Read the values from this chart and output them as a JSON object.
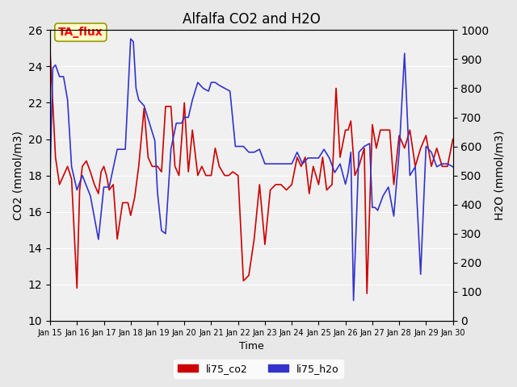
{
  "title": "Alfalfa CO2 and H2O",
  "xlabel": "Time",
  "ylabel_left": "CO2 (mmol/m3)",
  "ylabel_right": "H2O (mmol/m3)",
  "ylim_left": [
    10,
    26
  ],
  "ylim_right": [
    0,
    1000
  ],
  "yticks_left": [
    10,
    12,
    14,
    16,
    18,
    20,
    22,
    24,
    26
  ],
  "yticks_right": [
    0,
    100,
    200,
    300,
    400,
    500,
    600,
    700,
    800,
    900,
    1000
  ],
  "color_co2": "#cc0000",
  "color_h2o": "#3333cc",
  "legend_label_co2": "li75_co2",
  "legend_label_h2o": "li75_h2o",
  "annotation_text": "TA_flux",
  "annotation_bbox_facecolor": "#ffffcc",
  "annotation_bbox_edgecolor": "#999900",
  "bg_color": "#e8e8e8",
  "plot_bg_color": "#f0f0f0",
  "x_start": 15,
  "x_end": 30,
  "x_ticks": [
    15,
    16,
    17,
    18,
    19,
    20,
    21,
    22,
    23,
    24,
    25,
    26,
    27,
    28,
    29,
    30
  ],
  "x_tick_labels": [
    "Jan 15",
    "Jan 16",
    "Jan 17",
    "Jan 18",
    "Jan 19",
    "Jan 20",
    "Jan 21",
    "Jan 22",
    "Jan 23",
    "Jan 24",
    "Jan 25",
    "Jan 26",
    "Jan 27",
    "Jan 28",
    "Jan 29",
    "Jan 30"
  ],
  "co2_x": [
    15.0,
    15.1,
    15.2,
    15.35,
    15.5,
    15.65,
    15.8,
    16.0,
    16.1,
    16.2,
    16.35,
    16.5,
    16.65,
    16.8,
    16.9,
    17.0,
    17.1,
    17.2,
    17.35,
    17.5,
    17.7,
    17.9,
    18.0,
    18.15,
    18.3,
    18.5,
    18.65,
    18.8,
    19.0,
    19.15,
    19.3,
    19.5,
    19.65,
    19.8,
    20.0,
    20.15,
    20.3,
    20.5,
    20.65,
    20.8,
    21.0,
    21.15,
    21.3,
    21.5,
    21.65,
    21.8,
    22.0,
    22.2,
    22.4,
    22.6,
    22.8,
    23.0,
    23.2,
    23.4,
    23.6,
    23.8,
    24.0,
    24.2,
    24.35,
    24.5,
    24.65,
    24.8,
    25.0,
    25.15,
    25.3,
    25.5,
    25.65,
    25.8,
    26.0,
    26.1,
    26.2,
    26.35,
    26.5,
    26.6,
    26.7,
    26.8,
    27.0,
    27.15,
    27.3,
    27.5,
    27.65,
    27.8,
    28.0,
    28.2,
    28.4,
    28.6,
    28.8,
    29.0,
    29.2,
    29.4,
    29.6,
    29.8,
    30.0
  ],
  "co2_y": [
    24.8,
    22.0,
    19.0,
    17.5,
    18.0,
    18.5,
    17.8,
    11.8,
    17.2,
    18.5,
    18.8,
    18.2,
    17.5,
    17.0,
    18.2,
    18.5,
    18.0,
    17.2,
    17.5,
    14.5,
    16.5,
    16.5,
    15.8,
    16.8,
    18.5,
    21.7,
    19.0,
    18.5,
    18.5,
    18.2,
    21.8,
    21.8,
    18.5,
    18.0,
    22.0,
    18.2,
    20.5,
    18.0,
    18.5,
    18.0,
    18.0,
    19.5,
    18.5,
    18.0,
    18.0,
    18.2,
    18.0,
    12.2,
    12.5,
    14.5,
    17.5,
    14.2,
    17.2,
    17.5,
    17.5,
    17.2,
    17.5,
    19.0,
    18.5,
    19.0,
    17.0,
    18.5,
    17.5,
    19.0,
    17.2,
    17.5,
    22.8,
    19.0,
    20.5,
    20.5,
    21.0,
    18.0,
    18.5,
    19.0,
    19.5,
    11.5,
    20.8,
    19.5,
    20.5,
    20.5,
    20.5,
    17.5,
    20.2,
    19.5,
    20.5,
    18.5,
    19.5,
    20.2,
    18.5,
    19.5,
    18.5,
    18.5,
    20.0
  ],
  "h2o_x": [
    15.0,
    15.1,
    15.2,
    15.35,
    15.5,
    15.65,
    15.8,
    16.0,
    16.2,
    16.5,
    16.8,
    17.0,
    17.2,
    17.5,
    17.8,
    18.0,
    18.1,
    18.2,
    18.3,
    18.5,
    18.7,
    18.9,
    19.0,
    19.15,
    19.3,
    19.5,
    19.7,
    19.9,
    20.0,
    20.15,
    20.3,
    20.5,
    20.7,
    20.9,
    21.0,
    21.15,
    21.3,
    21.5,
    21.7,
    21.9,
    22.0,
    22.2,
    22.4,
    22.6,
    22.8,
    23.0,
    23.2,
    23.4,
    23.6,
    23.8,
    24.0,
    24.2,
    24.4,
    24.6,
    24.8,
    25.0,
    25.2,
    25.4,
    25.6,
    25.8,
    26.0,
    26.1,
    26.2,
    26.3,
    26.5,
    26.7,
    26.9,
    27.0,
    27.1,
    27.2,
    27.4,
    27.6,
    27.8,
    28.0,
    28.2,
    28.4,
    28.6,
    28.8,
    29.0,
    29.2,
    29.4,
    29.6,
    29.8,
    30.0
  ],
  "h2o_y": [
    500,
    870,
    880,
    840,
    840,
    760,
    530,
    450,
    500,
    430,
    280,
    460,
    460,
    590,
    590,
    970,
    960,
    800,
    760,
    740,
    680,
    620,
    440,
    310,
    300,
    590,
    680,
    680,
    700,
    700,
    760,
    820,
    800,
    790,
    820,
    820,
    810,
    800,
    790,
    600,
    600,
    600,
    580,
    580,
    590,
    540,
    540,
    540,
    540,
    540,
    540,
    580,
    540,
    560,
    560,
    560,
    590,
    560,
    510,
    540,
    470,
    510,
    580,
    70,
    580,
    600,
    610,
    390,
    390,
    380,
    430,
    460,
    360,
    580,
    920,
    500,
    530,
    160,
    600,
    580,
    530,
    540,
    540,
    530
  ]
}
